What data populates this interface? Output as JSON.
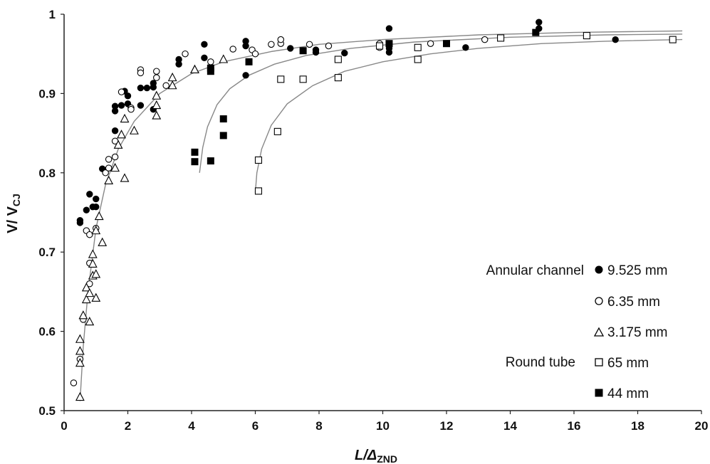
{
  "chart_data": {
    "type": "scatter",
    "xlabel": "L/Δ",
    "xlabel_sub": "ZND",
    "ylabel": "V/ V",
    "ylabel_sub": "CJ",
    "xlim": [
      0,
      20
    ],
    "ylim": [
      0.5,
      1.0
    ],
    "x_ticks": [
      0,
      2,
      4,
      6,
      8,
      10,
      12,
      14,
      16,
      18,
      20
    ],
    "y_ticks": [
      0.5,
      0.6,
      0.7,
      0.8,
      0.9,
      1.0
    ],
    "x_tick_labels": [
      "0",
      "2",
      "4",
      "6",
      "8",
      "10",
      "12",
      "14",
      "16",
      "18",
      "20"
    ],
    "y_tick_labels": [
      "0.5",
      "0.6",
      "0.7",
      "0.8",
      "0.9",
      "1"
    ],
    "grid": false,
    "legend": {
      "placement": "bottom-right",
      "groups": [
        {
          "label": "Annular channel",
          "entries": [
            "9.525 mm",
            "6.35 mm",
            "3.175 mm"
          ]
        },
        {
          "label": "Round tube",
          "entries": [
            "65 mm",
            "44 mm"
          ]
        }
      ]
    },
    "series": [
      {
        "name": "9.525 mm",
        "group": "Annular channel",
        "marker": "filled-circle",
        "points": [
          [
            0.5,
            0.74
          ],
          [
            0.5,
            0.737
          ],
          [
            0.7,
            0.753
          ],
          [
            0.8,
            0.773
          ],
          [
            0.9,
            0.757
          ],
          [
            1.0,
            0.767
          ],
          [
            1.0,
            0.757
          ],
          [
            1.2,
            0.805
          ],
          [
            1.6,
            0.884
          ],
          [
            1.6,
            0.878
          ],
          [
            1.8,
            0.885
          ],
          [
            1.6,
            0.853
          ],
          [
            1.9,
            0.903
          ],
          [
            2.0,
            0.897
          ],
          [
            2.0,
            0.887
          ],
          [
            2.4,
            0.885
          ],
          [
            2.4,
            0.907
          ],
          [
            2.6,
            0.907
          ],
          [
            2.8,
            0.908
          ],
          [
            2.8,
            0.913
          ],
          [
            2.8,
            0.88
          ],
          [
            3.6,
            0.943
          ],
          [
            3.6,
            0.937
          ],
          [
            4.4,
            0.962
          ],
          [
            4.4,
            0.945
          ],
          [
            5.7,
            0.966
          ],
          [
            5.7,
            0.96
          ],
          [
            5.7,
            0.923
          ],
          [
            7.1,
            0.957
          ],
          [
            7.9,
            0.955
          ],
          [
            7.9,
            0.952
          ],
          [
            8.8,
            0.951
          ],
          [
            10.2,
            0.982
          ],
          [
            10.2,
            0.957
          ],
          [
            10.2,
            0.952
          ],
          [
            12.6,
            0.958
          ],
          [
            14.9,
            0.99
          ],
          [
            14.9,
            0.982
          ],
          [
            17.3,
            0.968
          ]
        ]
      },
      {
        "name": "6.35 mm",
        "group": "Annular channel",
        "marker": "open-circle",
        "points": [
          [
            0.3,
            0.535
          ],
          [
            0.5,
            0.565
          ],
          [
            0.6,
            0.615
          ],
          [
            0.7,
            0.727
          ],
          [
            0.8,
            0.722
          ],
          [
            0.8,
            0.66
          ],
          [
            0.8,
            0.686
          ],
          [
            1.0,
            0.73
          ],
          [
            1.3,
            0.8
          ],
          [
            1.4,
            0.806
          ],
          [
            1.4,
            0.817
          ],
          [
            1.6,
            0.84
          ],
          [
            1.6,
            0.82
          ],
          [
            1.8,
            0.902
          ],
          [
            2.1,
            0.882
          ],
          [
            2.1,
            0.88
          ],
          [
            2.4,
            0.93
          ],
          [
            2.4,
            0.926
          ],
          [
            2.9,
            0.928
          ],
          [
            2.9,
            0.92
          ],
          [
            3.2,
            0.91
          ],
          [
            3.8,
            0.95
          ],
          [
            4.6,
            0.94
          ],
          [
            5.3,
            0.956
          ],
          [
            5.9,
            0.955
          ],
          [
            6.0,
            0.95
          ],
          [
            6.5,
            0.962
          ],
          [
            6.8,
            0.963
          ],
          [
            6.8,
            0.968
          ],
          [
            7.7,
            0.962
          ],
          [
            8.3,
            0.96
          ],
          [
            9.9,
            0.963
          ],
          [
            9.9,
            0.958
          ],
          [
            11.5,
            0.963
          ],
          [
            13.2,
            0.968
          ]
        ]
      },
      {
        "name": "3.175 mm",
        "group": "Annular channel",
        "marker": "open-triangle",
        "points": [
          [
            0.5,
            0.517
          ],
          [
            0.5,
            0.56
          ],
          [
            0.5,
            0.575
          ],
          [
            0.5,
            0.59
          ],
          [
            0.6,
            0.62
          ],
          [
            0.7,
            0.64
          ],
          [
            0.7,
            0.655
          ],
          [
            0.8,
            0.648
          ],
          [
            0.8,
            0.612
          ],
          [
            0.9,
            0.67
          ],
          [
            0.9,
            0.685
          ],
          [
            0.9,
            0.697
          ],
          [
            1.0,
            0.642
          ],
          [
            1.0,
            0.672
          ],
          [
            1.0,
            0.727
          ],
          [
            1.1,
            0.745
          ],
          [
            1.2,
            0.712
          ],
          [
            1.4,
            0.79
          ],
          [
            1.6,
            0.806
          ],
          [
            1.7,
            0.835
          ],
          [
            1.8,
            0.848
          ],
          [
            1.9,
            0.793
          ],
          [
            1.9,
            0.868
          ],
          [
            2.2,
            0.853
          ],
          [
            2.9,
            0.872
          ],
          [
            2.9,
            0.885
          ],
          [
            2.9,
            0.897
          ],
          [
            3.4,
            0.91
          ],
          [
            3.4,
            0.92
          ],
          [
            4.1,
            0.93
          ],
          [
            4.1,
            0.93
          ],
          [
            5.0,
            0.943
          ]
        ]
      },
      {
        "name": "65 mm",
        "group": "Round tube",
        "marker": "open-square",
        "points": [
          [
            6.1,
            0.777
          ],
          [
            6.1,
            0.816
          ],
          [
            6.7,
            0.852
          ],
          [
            6.8,
            0.918
          ],
          [
            7.5,
            0.918
          ],
          [
            8.6,
            0.92
          ],
          [
            8.6,
            0.943
          ],
          [
            9.9,
            0.96
          ],
          [
            11.1,
            0.958
          ],
          [
            11.1,
            0.943
          ],
          [
            13.7,
            0.97
          ],
          [
            16.4,
            0.973
          ],
          [
            19.1,
            0.968
          ]
        ]
      },
      {
        "name": "44 mm",
        "group": "Round tube",
        "marker": "filled-square",
        "points": [
          [
            4.1,
            0.826
          ],
          [
            4.1,
            0.814
          ],
          [
            4.6,
            0.815
          ],
          [
            5.0,
            0.868
          ],
          [
            5.0,
            0.847
          ],
          [
            4.6,
            0.932
          ],
          [
            4.6,
            0.928
          ],
          [
            5.8,
            0.94
          ],
          [
            7.5,
            0.954
          ],
          [
            10.2,
            0.963
          ],
          [
            12.0,
            0.963
          ],
          [
            14.8,
            0.977
          ]
        ]
      }
    ],
    "trend_curves": [
      {
        "points": [
          [
            0.5,
            0.512
          ],
          [
            0.6,
            0.58
          ],
          [
            0.75,
            0.65
          ],
          [
            1.0,
            0.73
          ],
          [
            1.3,
            0.785
          ],
          [
            1.7,
            0.83
          ],
          [
            2.2,
            0.865
          ],
          [
            3.0,
            0.9
          ],
          [
            4.0,
            0.925
          ],
          [
            5.0,
            0.94
          ],
          [
            6.5,
            0.953
          ],
          [
            8.0,
            0.962
          ],
          [
            10.0,
            0.968
          ],
          [
            13.0,
            0.974
          ],
          [
            16.0,
            0.977
          ],
          [
            19.4,
            0.979
          ]
        ]
      },
      {
        "points": [
          [
            4.25,
            0.8
          ],
          [
            4.35,
            0.832
          ],
          [
            4.5,
            0.858
          ],
          [
            4.8,
            0.886
          ],
          [
            5.2,
            0.906
          ],
          [
            5.8,
            0.923
          ],
          [
            6.6,
            0.937
          ],
          [
            7.6,
            0.948
          ],
          [
            9.0,
            0.957
          ],
          [
            11.0,
            0.965
          ],
          [
            14.0,
            0.971
          ],
          [
            17.0,
            0.974
          ],
          [
            19.4,
            0.975
          ]
        ]
      },
      {
        "points": [
          [
            6.0,
            0.775
          ],
          [
            6.05,
            0.8
          ],
          [
            6.2,
            0.83
          ],
          [
            6.5,
            0.86
          ],
          [
            7.0,
            0.887
          ],
          [
            7.8,
            0.91
          ],
          [
            8.8,
            0.928
          ],
          [
            10.0,
            0.94
          ],
          [
            11.5,
            0.95
          ],
          [
            13.0,
            0.957
          ],
          [
            15.0,
            0.963
          ],
          [
            17.0,
            0.966
          ],
          [
            19.4,
            0.968
          ]
        ]
      }
    ]
  }
}
